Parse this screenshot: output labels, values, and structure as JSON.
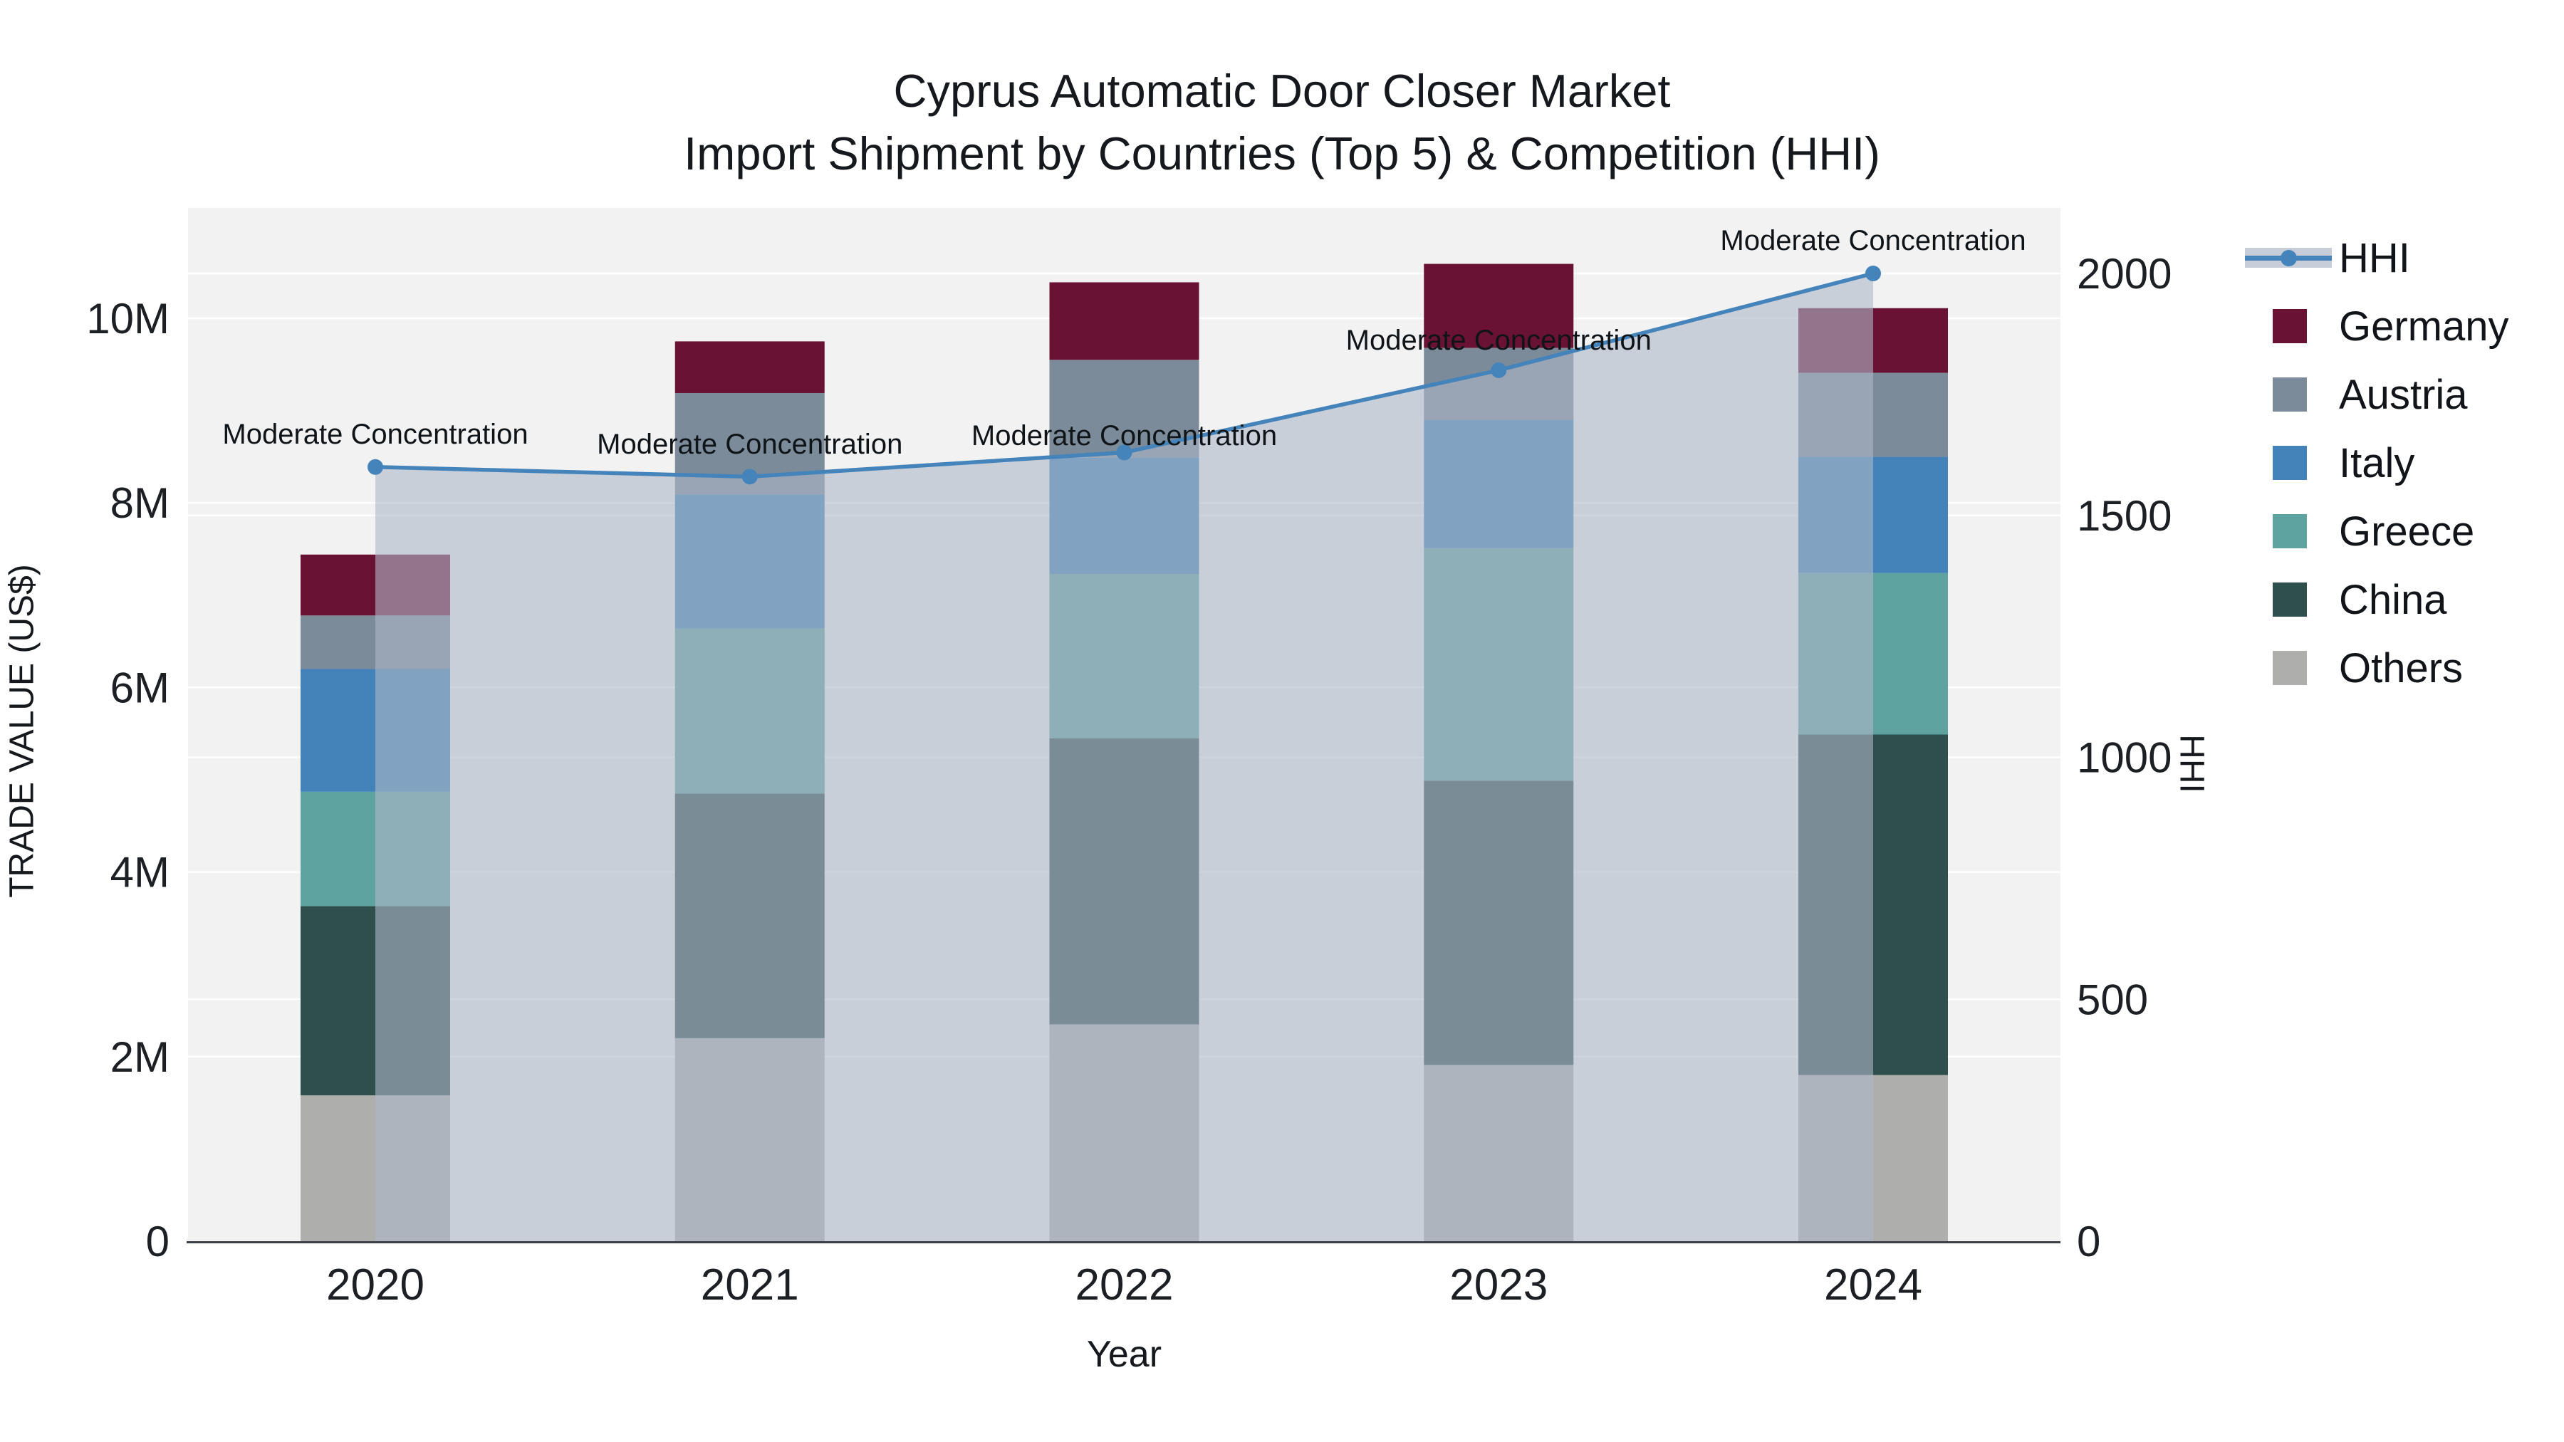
{
  "title": {
    "line1": "Cyprus Automatic Door Closer Market",
    "line2": "Import Shipment by Countries (Top 5) & Competition (HHI)"
  },
  "chart_data": {
    "type": "bar+line",
    "bar_mode": "stacked",
    "categories": [
      "2020",
      "2021",
      "2022",
      "2023",
      "2024"
    ],
    "bar_value_unit": "USD millions",
    "series": [
      {
        "name": "Others",
        "color": "#aeaeac",
        "values": [
          1.58,
          2.2,
          2.35,
          1.91,
          1.8
        ]
      },
      {
        "name": "China",
        "color": "#2e4f4b",
        "values": [
          2.05,
          2.65,
          3.1,
          3.08,
          3.69
        ]
      },
      {
        "name": "Greece",
        "color": "#5fa3a0",
        "values": [
          1.24,
          1.79,
          1.78,
          2.52,
          1.75
        ]
      },
      {
        "name": "Italy",
        "color": "#4383ba",
        "values": [
          1.33,
          1.45,
          1.26,
          1.39,
          1.26
        ]
      },
      {
        "name": "Austria",
        "color": "#7c8b99",
        "values": [
          0.58,
          1.1,
          1.06,
          0.78,
          0.91
        ]
      },
      {
        "name": "Germany",
        "color": "#6a1233",
        "values": [
          0.66,
          0.56,
          0.84,
          0.91,
          0.7
        ]
      }
    ],
    "bar_totals": [
      7.44,
      9.75,
      10.39,
      10.59,
      10.11
    ],
    "line": {
      "name": "HHI",
      "color": "#4484bb",
      "area_fill": "rgba(174,184,200,0.6)",
      "values": [
        1600,
        1580,
        1630,
        1800,
        2000
      ]
    },
    "annotations": [
      {
        "x": "2020",
        "text": "Moderate Concentration"
      },
      {
        "x": "2021",
        "text": "Moderate Concentration"
      },
      {
        "x": "2022",
        "text": "Moderate Concentration"
      },
      {
        "x": "2023",
        "text": "Moderate Concentration"
      },
      {
        "x": "2024",
        "text": "Moderate Concentration"
      }
    ],
    "y_left": {
      "title": "TRADE VALUE (US$)",
      "ticks": [
        "0",
        "2M",
        "4M",
        "6M",
        "8M",
        "10M"
      ],
      "tick_values": [
        0,
        2,
        4,
        6,
        8,
        10
      ],
      "range": [
        0,
        11.2
      ]
    },
    "y_right": {
      "title": "HHI",
      "ticks": [
        "0",
        "500",
        "1000",
        "1500",
        "2000"
      ],
      "tick_values": [
        0,
        500,
        1000,
        1500,
        2000
      ],
      "range": [
        0,
        2135
      ]
    },
    "x_axis": {
      "title": "Year"
    },
    "legend": [
      "HHI",
      "Germany",
      "Austria",
      "Italy",
      "Greece",
      "China",
      "Others"
    ],
    "grid": "on",
    "legend_position": "right",
    "plot_background": "#f2f2f3",
    "gridline_color": "#ffffff"
  }
}
